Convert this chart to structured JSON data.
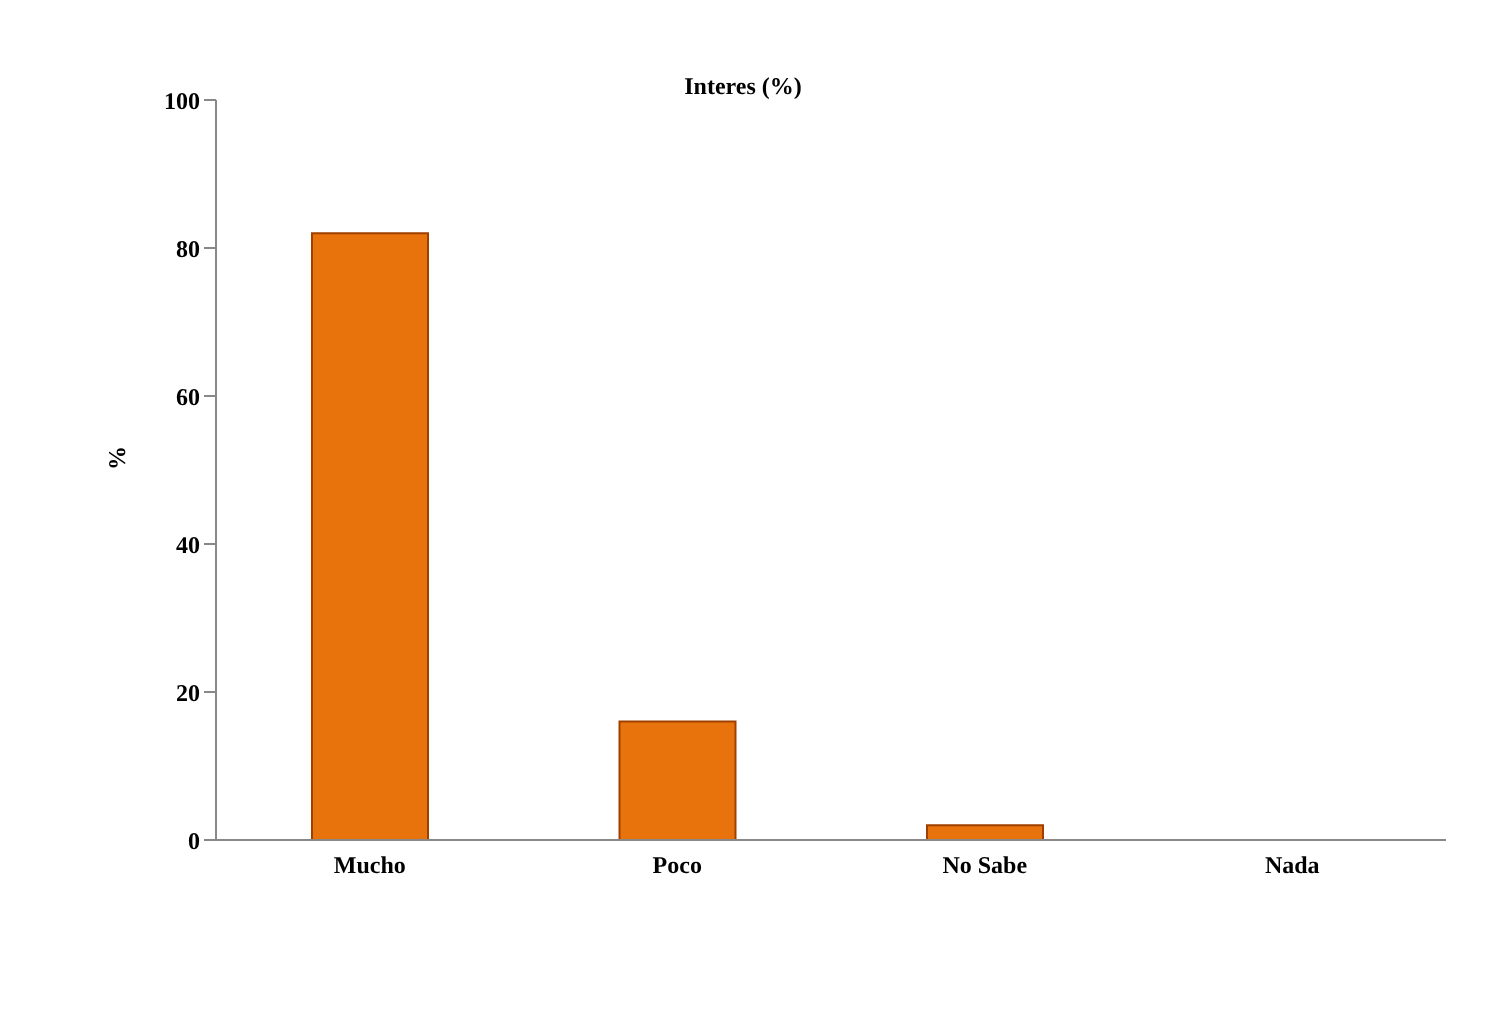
{
  "chart_data": {
    "type": "bar",
    "title": "Interes (%)",
    "ylabel": "%",
    "categories": [
      "Mucho",
      "Poco",
      "No Sabe",
      "Nada"
    ],
    "values": [
      82,
      16,
      2,
      0
    ],
    "color": "#e8720c",
    "ylim": [
      0,
      100
    ],
    "yticks": [
      0,
      20,
      40,
      60,
      80,
      100
    ],
    "grid": false,
    "legend": false
  }
}
